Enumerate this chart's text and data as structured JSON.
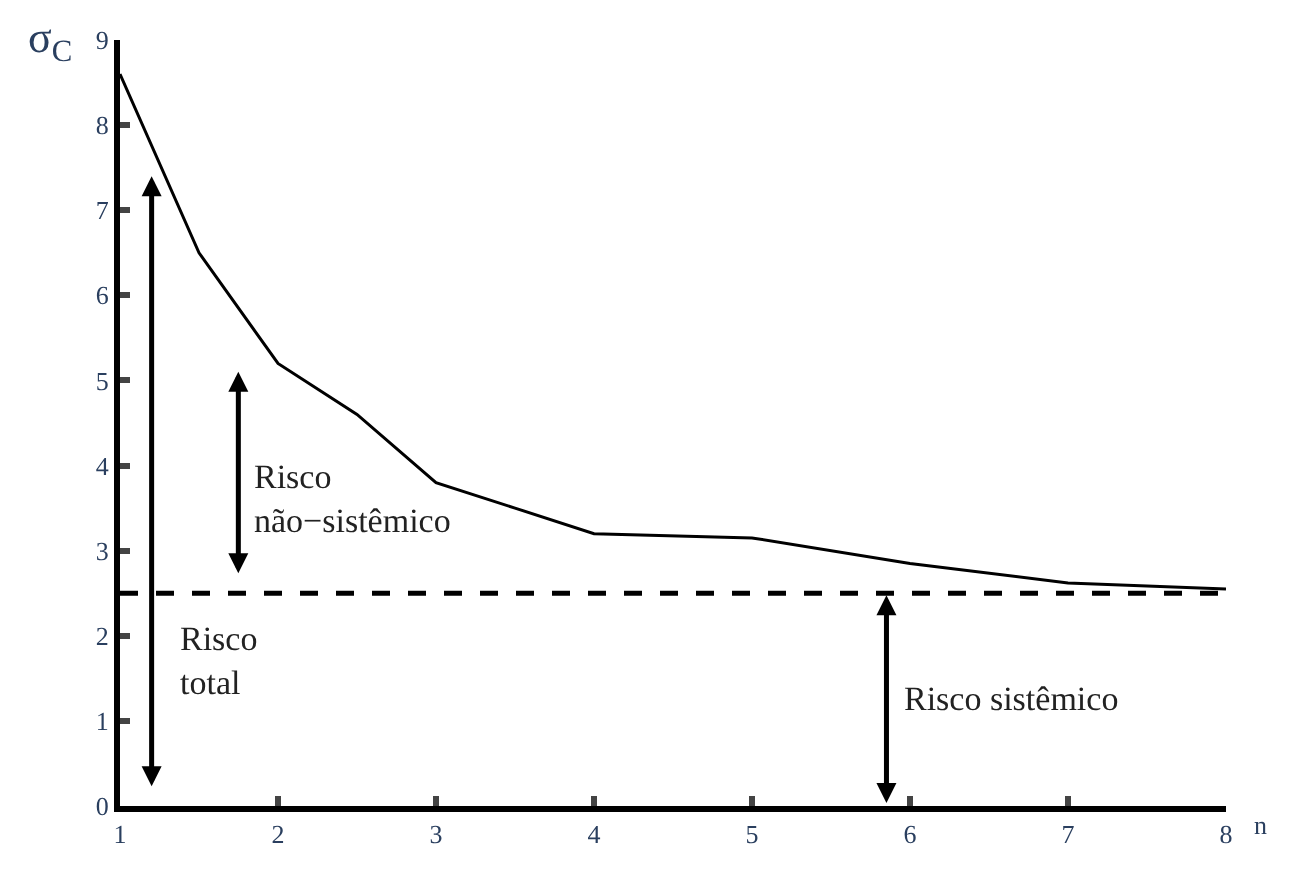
{
  "chart_data": {
    "type": "line",
    "xlabel": "n",
    "ylabel": "σ$_{C}$",
    "x": [
      1,
      1.5,
      2,
      2.5,
      3,
      3.5,
      4,
      5,
      6,
      7,
      8
    ],
    "series": [
      {
        "color": "#000000",
        "values": [
          8.6,
          6.5,
          5.2,
          4.6,
          3.8,
          3.5,
          3.2,
          3.15,
          2.85,
          2.62,
          2.55
        ]
      }
    ],
    "xlim": [
      1,
      8
    ],
    "xticks": [
      1,
      2,
      3,
      4,
      5,
      6,
      7,
      8
    ],
    "ylim": [
      0,
      9
    ],
    "yticks": [
      0,
      1,
      2,
      3,
      4,
      5,
      6,
      7,
      8,
      9
    ],
    "grid": false,
    "marker": "none",
    "line_style": "solid",
    "ref_lines": [
      {
        "axis": "y",
        "value": 2.5,
        "color": "#000000",
        "line_style": "dashed"
      }
    ],
    "annotations": [
      "Risco\nnão−sistêmico",
      "Risco\ntotal",
      "Risco sistêmico"
    ]
  }
}
